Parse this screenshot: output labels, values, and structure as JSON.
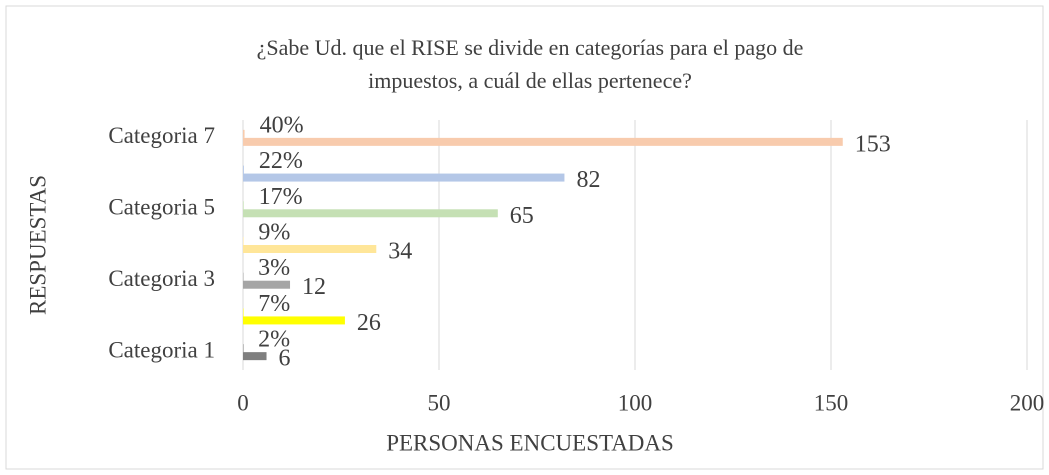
{
  "chart_data": {
    "type": "bar",
    "orientation": "horizontal",
    "title": [
      "¿Sabe Ud. que el RISE se divide en categorías para el pago de",
      "impuestos, a cuál de ellas pertenece?"
    ],
    "xlabel": "PERSONAS ENCUESTADAS",
    "ylabel": "RESPUESTAS",
    "categories": [
      "Categoria 1",
      null,
      "Categoria 3",
      null,
      "Categoria 5",
      null,
      "Categoria 7"
    ],
    "colors": [
      "#7f7f7f",
      "#ffff00",
      "#a5a5a5",
      "#ffe699",
      "#c5e0b4",
      "#b4c7e7",
      "#f8cbad"
    ],
    "series": [
      {
        "values": [
          0.02,
          0.07,
          0.03,
          0.09,
          0.17,
          0.22,
          0.4
        ],
        "value_labels": [
          "2%",
          "7%",
          "3%",
          "9%",
          "17%",
          "22%",
          "40%"
        ]
      },
      {
        "values": [
          6,
          26,
          12,
          34,
          65,
          82,
          153
        ]
      }
    ],
    "xlim": [
      0,
      200
    ],
    "xticks": [
      0,
      50,
      100,
      150,
      200
    ],
    "grid": true
  }
}
